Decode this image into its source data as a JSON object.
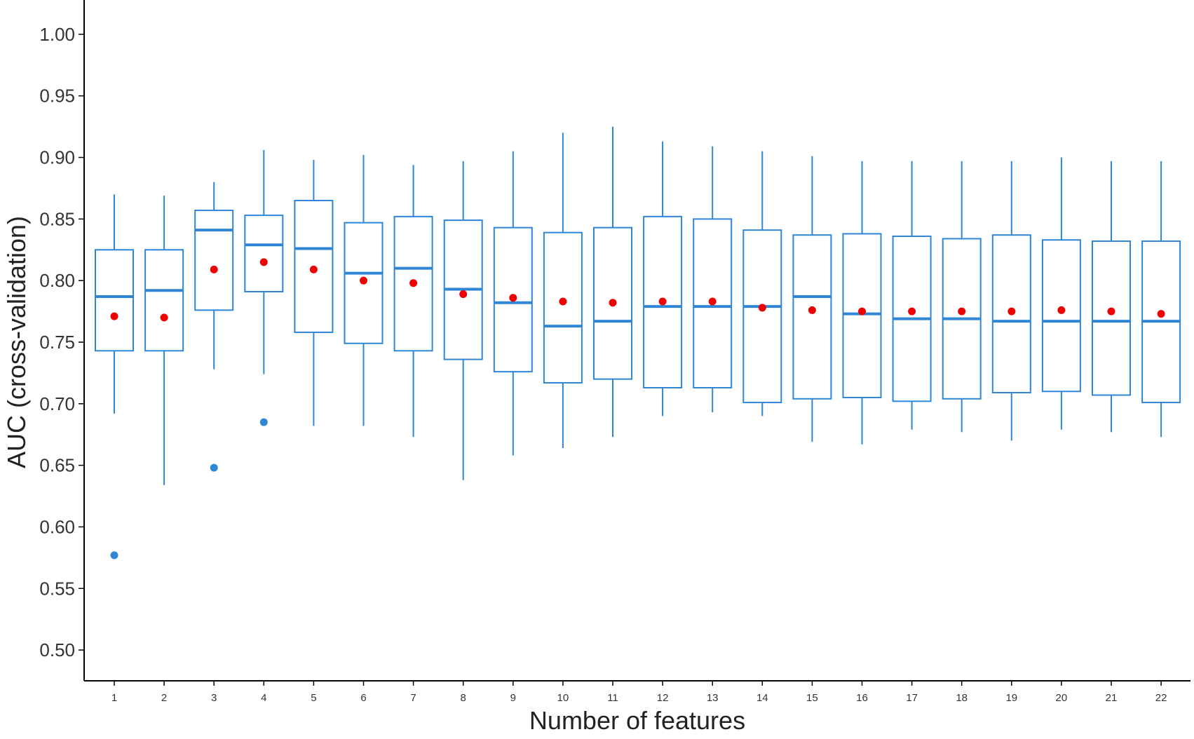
{
  "colors": {
    "box": "#2f86d6",
    "mean": "#ee0000",
    "outlier": "#2f86d6",
    "axis": "#000000",
    "text": "#222222"
  },
  "chart_data": {
    "type": "box",
    "xlabel": "Number of features",
    "ylabel": "AUC (cross-validation)",
    "ylim": [
      0.475,
      1.025
    ],
    "y_ticks": [
      0.5,
      0.55,
      0.6,
      0.65,
      0.7,
      0.75,
      0.8,
      0.85,
      0.9,
      0.95,
      1.0
    ],
    "y_tick_labels": [
      "0.50",
      "0.55",
      "0.60",
      "0.65",
      "0.70",
      "0.75",
      "0.80",
      "0.85",
      "0.90",
      "0.95",
      "1.00"
    ],
    "grid": false,
    "legend": "none",
    "categories": [
      "1",
      "2",
      "3",
      "4",
      "5",
      "6",
      "7",
      "8",
      "9",
      "10",
      "11",
      "12",
      "13",
      "14",
      "15",
      "16",
      "17",
      "18",
      "19",
      "20",
      "21",
      "22"
    ],
    "boxes": [
      {
        "x": "1",
        "whisker_low": 0.692,
        "q1": 0.743,
        "median": 0.787,
        "q3": 0.825,
        "whisker_high": 0.87,
        "mean": 0.771,
        "outliers": [
          0.577
        ]
      },
      {
        "x": "2",
        "whisker_low": 0.634,
        "q1": 0.743,
        "median": 0.792,
        "q3": 0.825,
        "whisker_high": 0.869,
        "mean": 0.77,
        "outliers": []
      },
      {
        "x": "3",
        "whisker_low": 0.728,
        "q1": 0.776,
        "median": 0.841,
        "q3": 0.857,
        "whisker_high": 0.88,
        "mean": 0.809,
        "outliers": [
          0.648
        ]
      },
      {
        "x": "4",
        "whisker_low": 0.724,
        "q1": 0.791,
        "median": 0.829,
        "q3": 0.853,
        "whisker_high": 0.906,
        "mean": 0.815,
        "outliers": [
          0.685
        ]
      },
      {
        "x": "5",
        "whisker_low": 0.682,
        "q1": 0.758,
        "median": 0.826,
        "q3": 0.865,
        "whisker_high": 0.898,
        "mean": 0.809,
        "outliers": []
      },
      {
        "x": "6",
        "whisker_low": 0.682,
        "q1": 0.749,
        "median": 0.806,
        "q3": 0.847,
        "whisker_high": 0.902,
        "mean": 0.8,
        "outliers": []
      },
      {
        "x": "7",
        "whisker_low": 0.673,
        "q1": 0.743,
        "median": 0.81,
        "q3": 0.852,
        "whisker_high": 0.894,
        "mean": 0.798,
        "outliers": []
      },
      {
        "x": "8",
        "whisker_low": 0.638,
        "q1": 0.736,
        "median": 0.793,
        "q3": 0.849,
        "whisker_high": 0.897,
        "mean": 0.789,
        "outliers": []
      },
      {
        "x": "9",
        "whisker_low": 0.658,
        "q1": 0.726,
        "median": 0.782,
        "q3": 0.843,
        "whisker_high": 0.905,
        "mean": 0.786,
        "outliers": []
      },
      {
        "x": "10",
        "whisker_low": 0.664,
        "q1": 0.717,
        "median": 0.763,
        "q3": 0.839,
        "whisker_high": 0.92,
        "mean": 0.783,
        "outliers": []
      },
      {
        "x": "11",
        "whisker_low": 0.673,
        "q1": 0.72,
        "median": 0.767,
        "q3": 0.843,
        "whisker_high": 0.925,
        "mean": 0.782,
        "outliers": []
      },
      {
        "x": "12",
        "whisker_low": 0.69,
        "q1": 0.713,
        "median": 0.779,
        "q3": 0.852,
        "whisker_high": 0.913,
        "mean": 0.783,
        "outliers": []
      },
      {
        "x": "13",
        "whisker_low": 0.693,
        "q1": 0.713,
        "median": 0.779,
        "q3": 0.85,
        "whisker_high": 0.909,
        "mean": 0.783,
        "outliers": []
      },
      {
        "x": "14",
        "whisker_low": 0.69,
        "q1": 0.701,
        "median": 0.779,
        "q3": 0.841,
        "whisker_high": 0.905,
        "mean": 0.778,
        "outliers": []
      },
      {
        "x": "15",
        "whisker_low": 0.669,
        "q1": 0.704,
        "median": 0.787,
        "q3": 0.837,
        "whisker_high": 0.901,
        "mean": 0.776,
        "outliers": []
      },
      {
        "x": "16",
        "whisker_low": 0.667,
        "q1": 0.705,
        "median": 0.773,
        "q3": 0.838,
        "whisker_high": 0.897,
        "mean": 0.775,
        "outliers": []
      },
      {
        "x": "17",
        "whisker_low": 0.679,
        "q1": 0.702,
        "median": 0.769,
        "q3": 0.836,
        "whisker_high": 0.897,
        "mean": 0.775,
        "outliers": []
      },
      {
        "x": "18",
        "whisker_low": 0.677,
        "q1": 0.704,
        "median": 0.769,
        "q3": 0.834,
        "whisker_high": 0.897,
        "mean": 0.775,
        "outliers": []
      },
      {
        "x": "19",
        "whisker_low": 0.67,
        "q1": 0.709,
        "median": 0.767,
        "q3": 0.837,
        "whisker_high": 0.897,
        "mean": 0.775,
        "outliers": []
      },
      {
        "x": "20",
        "whisker_low": 0.679,
        "q1": 0.71,
        "median": 0.767,
        "q3": 0.833,
        "whisker_high": 0.9,
        "mean": 0.776,
        "outliers": []
      },
      {
        "x": "21",
        "whisker_low": 0.677,
        "q1": 0.707,
        "median": 0.767,
        "q3": 0.832,
        "whisker_high": 0.897,
        "mean": 0.775,
        "outliers": []
      },
      {
        "x": "22",
        "whisker_low": 0.673,
        "q1": 0.701,
        "median": 0.767,
        "q3": 0.832,
        "whisker_high": 0.897,
        "mean": 0.773,
        "outliers": []
      }
    ]
  }
}
